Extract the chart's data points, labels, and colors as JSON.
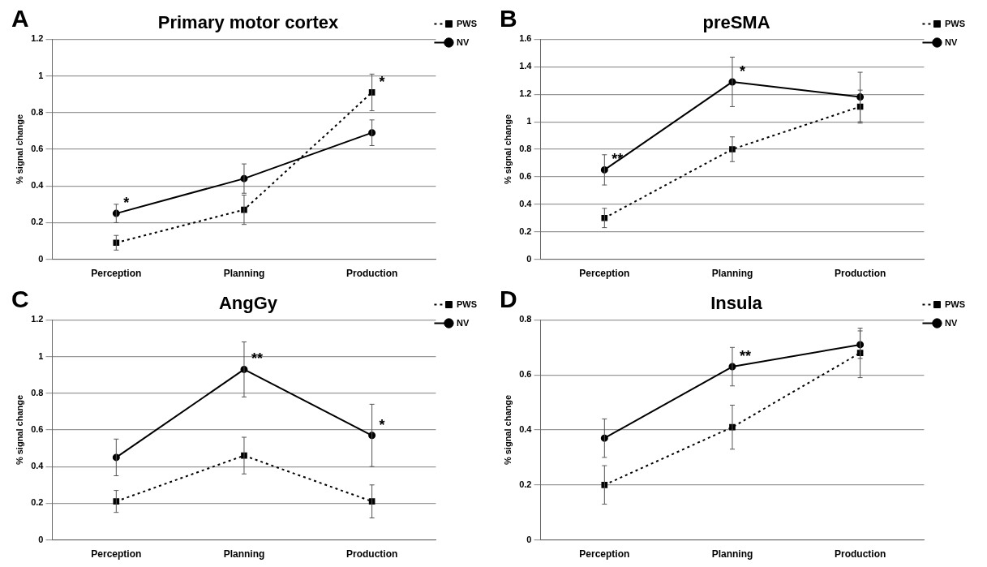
{
  "chart_data": [
    {
      "type": "line",
      "title": "Primary motor cortex",
      "ylabel": "% signal change",
      "categories": [
        "Perception",
        "Planning",
        "Production"
      ],
      "ylim": [
        0,
        1.2
      ],
      "yticks": [
        0,
        0.2,
        0.4,
        0.6,
        0.8,
        1,
        1.2
      ],
      "grid": "y",
      "legend": "top right",
      "annotations": [
        "A",
        {
          "text": "*",
          "x": "Perception",
          "y": 0.25
        },
        {
          "text": "*",
          "x": "Production",
          "y": 0.91
        }
      ],
      "series": [
        {
          "name": "PWS",
          "color": "#000000",
          "marker": "square",
          "line_style": "dotted",
          "values": [
            0.09,
            0.27,
            0.91
          ],
          "errors": [
            0.04,
            0.08,
            0.1
          ]
        },
        {
          "name": "NV",
          "color": "#000000",
          "marker": "circle",
          "line_style": "solid",
          "values": [
            0.25,
            0.44,
            0.69
          ],
          "errors": [
            0.05,
            0.08,
            0.07
          ]
        }
      ]
    },
    {
      "type": "line",
      "title": "preSMA",
      "ylabel": "% signal change",
      "categories": [
        "Perception",
        "Planning",
        "Production"
      ],
      "ylim": [
        0,
        1.6
      ],
      "yticks": [
        0,
        0.2,
        0.4,
        0.6,
        0.8,
        1,
        1.2,
        1.4,
        1.6
      ],
      "grid": "y",
      "legend": "top right",
      "annotations": [
        "B",
        {
          "text": "**",
          "x": "Perception",
          "y": 0.65
        },
        {
          "text": "*",
          "x": "Planning",
          "y": 1.29
        }
      ],
      "series": [
        {
          "name": "PWS",
          "color": "#000000",
          "marker": "square",
          "line_style": "dotted",
          "values": [
            0.3,
            0.8,
            1.11
          ],
          "errors": [
            0.07,
            0.09,
            0.12
          ]
        },
        {
          "name": "NV",
          "color": "#000000",
          "marker": "circle",
          "line_style": "solid",
          "values": [
            0.65,
            1.29,
            1.18
          ],
          "errors": [
            0.11,
            0.18,
            0.18
          ]
        }
      ]
    },
    {
      "type": "line",
      "title": "AngGy",
      "ylabel": "% signal change",
      "categories": [
        "Perception",
        "Planning",
        "Production"
      ],
      "ylim": [
        0,
        1.2
      ],
      "yticks": [
        0,
        0.2,
        0.4,
        0.6,
        0.8,
        1,
        1.2
      ],
      "grid": "y",
      "legend": "top right",
      "annotations": [
        "C",
        {
          "text": "**",
          "x": "Planning",
          "y": 0.93
        },
        {
          "text": "*",
          "x": "Production",
          "y": 0.57
        }
      ],
      "series": [
        {
          "name": "PWS",
          "color": "#000000",
          "marker": "square",
          "line_style": "dotted",
          "values": [
            0.21,
            0.46,
            0.21
          ],
          "errors": [
            0.06,
            0.1,
            0.09
          ]
        },
        {
          "name": "NV",
          "color": "#000000",
          "marker": "circle",
          "line_style": "solid",
          "values": [
            0.45,
            0.93,
            0.57
          ],
          "errors": [
            0.1,
            0.15,
            0.17
          ]
        }
      ]
    },
    {
      "type": "line",
      "title": "Insula",
      "ylabel": "% signal change",
      "categories": [
        "Perception",
        "Planning",
        "Production"
      ],
      "ylim": [
        0,
        0.8
      ],
      "yticks": [
        0,
        0.2,
        0.4,
        0.6,
        0.8
      ],
      "grid": "y",
      "legend": "top right",
      "annotations": [
        "D",
        {
          "text": "**",
          "x": "Planning",
          "y": 0.63
        }
      ],
      "series": [
        {
          "name": "PWS",
          "color": "#000000",
          "marker": "square",
          "line_style": "dotted",
          "values": [
            0.2,
            0.41,
            0.68
          ],
          "errors": [
            0.07,
            0.08,
            0.09
          ]
        },
        {
          "name": "NV",
          "color": "#000000",
          "marker": "circle",
          "line_style": "solid",
          "values": [
            0.37,
            0.63,
            0.71
          ],
          "errors": [
            0.07,
            0.07,
            0.05
          ]
        }
      ]
    }
  ]
}
